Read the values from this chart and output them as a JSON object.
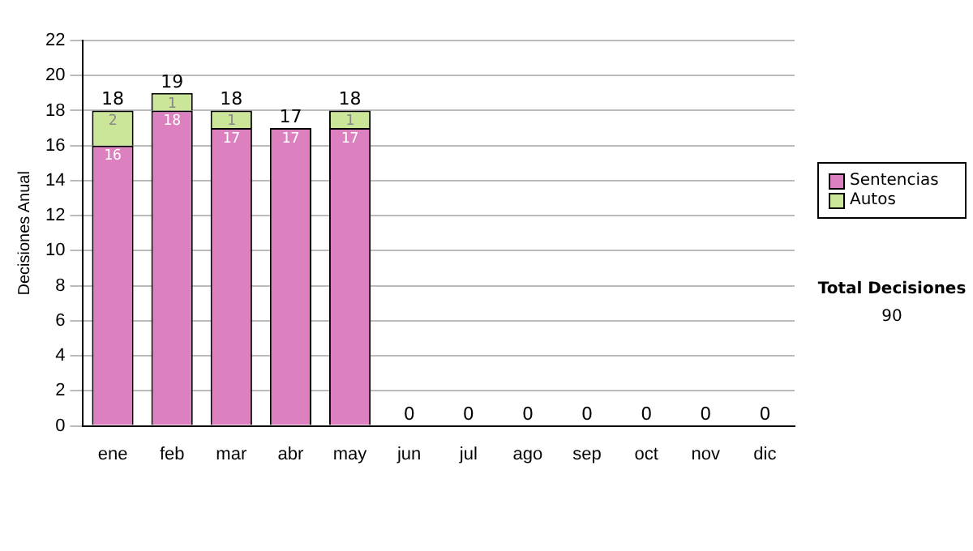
{
  "chart_data": {
    "type": "bar",
    "ylabel": "Decisiones Anual",
    "stacked": true,
    "categories": [
      "ene",
      "feb",
      "mar",
      "abr",
      "may",
      "jun",
      "jul",
      "ago",
      "sep",
      "oct",
      "nov",
      "dic"
    ],
    "series": [
      {
        "name": "Sentencias",
        "color": "#dd80c0",
        "values": [
          16,
          18,
          17,
          17,
          17,
          0,
          0,
          0,
          0,
          0,
          0,
          0
        ],
        "value_labels": [
          "16",
          "18",
          "17",
          "17",
          "17",
          null,
          null,
          null,
          null,
          null,
          null,
          null
        ]
      },
      {
        "name": "Autos",
        "color": "#cce699",
        "values": [
          2,
          1,
          1,
          0,
          1,
          0,
          0,
          0,
          0,
          0,
          0,
          0
        ],
        "value_labels": [
          "2",
          "1",
          "1",
          null,
          "1",
          null,
          null,
          null,
          null,
          null,
          null,
          null
        ]
      }
    ],
    "totals": [
      "18",
      "19",
      "18",
      "17",
      "18",
      "0",
      "0",
      "0",
      "0",
      "0",
      "0",
      "0"
    ],
    "ylim": [
      0,
      22
    ],
    "yticks": [
      0,
      2,
      4,
      6,
      8,
      10,
      12,
      14,
      16,
      18,
      20,
      22
    ],
    "grid": "y",
    "legend": "right",
    "annotations": [
      "Total Decisiones",
      "90"
    ]
  }
}
